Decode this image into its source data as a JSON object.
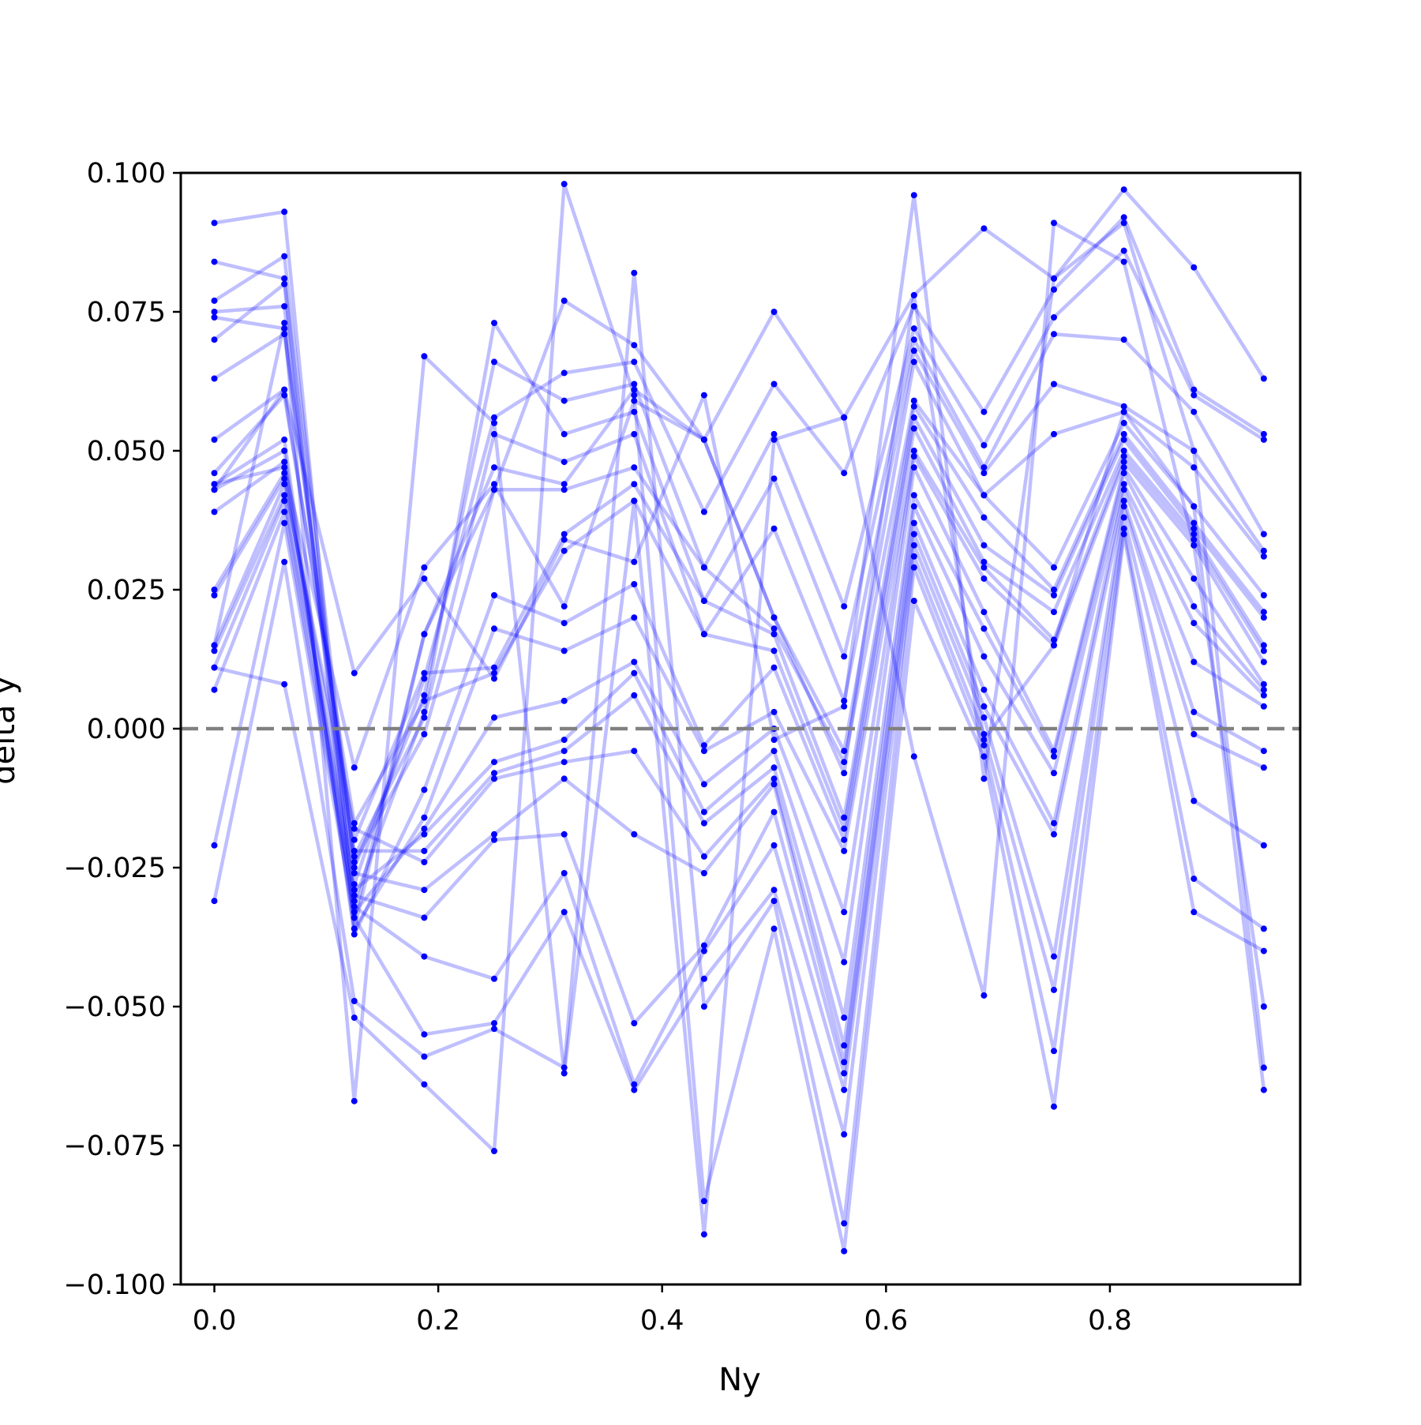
{
  "chart_data": {
    "type": "line",
    "title": "",
    "xlabel": "Ny",
    "ylabel": "delta y",
    "xlim": [
      -0.03,
      0.97
    ],
    "ylim": [
      -0.1,
      0.1
    ],
    "grid": false,
    "x_ticks": [
      0.0,
      0.2,
      0.4,
      0.6,
      0.8
    ],
    "x_tick_labels": [
      "0.0",
      "0.2",
      "0.4",
      "0.6",
      "0.8"
    ],
    "y_ticks": [
      0.1,
      0.075,
      0.05,
      0.025,
      0.0,
      -0.025,
      -0.05,
      -0.075,
      -0.1
    ],
    "y_tick_labels": [
      "0.100",
      "0.075",
      "0.050",
      "0.025",
      "0.000",
      "−0.025",
      "−0.050",
      "−0.075",
      "−0.100"
    ],
    "reference_line": {
      "y": 0.0,
      "style": "dashed",
      "color": "#808080"
    },
    "series_color": "#0000ff",
    "x": [
      0.0,
      0.0625,
      0.125,
      0.1875,
      0.25,
      0.3125,
      0.375,
      0.4375,
      0.5,
      0.5625,
      0.625,
      0.6875,
      0.75,
      0.8125,
      0.875,
      0.9375
    ],
    "series": [
      {
        "values": [
          0.091,
          0.093,
          -0.034,
          0.017,
          0.043,
          0.077,
          0.069,
          0.052,
          0.075,
          0.056,
          0.078,
          0.09,
          0.081,
          0.097,
          0.083,
          0.063
        ]
      },
      {
        "values": [
          0.084,
          0.081,
          -0.028,
          0.009,
          0.056,
          0.064,
          0.066,
          0.039,
          0.062,
          0.046,
          0.076,
          0.057,
          0.079,
          0.092,
          0.061,
          0.053
        ]
      },
      {
        "values": [
          0.077,
          0.085,
          -0.025,
          0.006,
          0.066,
          0.059,
          0.062,
          0.029,
          0.053,
          0.022,
          0.072,
          0.051,
          0.074,
          0.086,
          0.06,
          0.052
        ]
      },
      {
        "values": [
          0.075,
          0.076,
          -0.031,
          0.003,
          0.073,
          0.053,
          0.057,
          0.023,
          0.045,
          0.013,
          0.07,
          0.047,
          0.071,
          0.07,
          0.057,
          0.035
        ]
      },
      {
        "values": [
          0.074,
          0.072,
          -0.023,
          0.002,
          0.053,
          0.048,
          0.053,
          0.017,
          0.036,
          0.005,
          0.068,
          0.046,
          0.062,
          0.058,
          0.05,
          0.032
        ]
      },
      {
        "values": [
          0.07,
          0.08,
          -0.036,
          0.017,
          0.047,
          0.044,
          0.061,
          0.052,
          0.02,
          -0.004,
          0.066,
          0.042,
          0.053,
          0.057,
          0.047,
          0.031
        ]
      },
      {
        "values": [
          0.063,
          0.071,
          -0.024,
          -0.001,
          0.043,
          0.043,
          0.047,
          0.029,
          0.018,
          -0.006,
          0.059,
          0.042,
          0.029,
          0.055,
          0.04,
          0.024
        ]
      },
      {
        "values": [
          0.052,
          0.061,
          -0.02,
          0.01,
          0.011,
          0.035,
          0.044,
          0.023,
          0.017,
          -0.016,
          0.058,
          0.038,
          0.025,
          0.053,
          0.037,
          0.021
        ]
      },
      {
        "values": [
          0.046,
          0.06,
          -0.017,
          0.005,
          0.01,
          0.032,
          0.041,
          0.017,
          0.014,
          -0.018,
          0.056,
          0.033,
          0.024,
          0.052,
          0.036,
          0.02
        ]
      },
      {
        "values": [
          0.044,
          0.052,
          -0.037,
          -0.011,
          0.024,
          0.019,
          0.026,
          -0.003,
          0.011,
          -0.02,
          0.054,
          0.03,
          0.021,
          0.05,
          0.035,
          0.015
        ]
      },
      {
        "values": [
          0.043,
          0.05,
          -0.036,
          -0.016,
          0.018,
          0.014,
          0.02,
          -0.004,
          0.003,
          -0.022,
          0.05,
          0.029,
          0.016,
          0.049,
          0.034,
          0.014
        ]
      },
      {
        "values": [
          0.039,
          0.048,
          -0.033,
          -0.018,
          0.002,
          0.005,
          0.012,
          -0.01,
          0.0,
          -0.033,
          0.049,
          0.027,
          0.015,
          0.048,
          0.033,
          0.012
        ]
      },
      {
        "values": [
          0.025,
          0.046,
          -0.029,
          -0.019,
          -0.006,
          -0.002,
          0.01,
          -0.015,
          -0.004,
          -0.042,
          0.047,
          0.021,
          -0.004,
          0.047,
          0.027,
          0.008
        ]
      },
      {
        "values": [
          0.024,
          0.045,
          -0.022,
          -0.022,
          -0.008,
          -0.004,
          0.006,
          -0.017,
          -0.007,
          -0.052,
          0.042,
          0.018,
          -0.005,
          0.046,
          0.022,
          0.007
        ]
      },
      {
        "values": [
          0.015,
          0.044,
          -0.018,
          -0.024,
          -0.009,
          -0.006,
          -0.004,
          -0.023,
          -0.009,
          -0.057,
          0.04,
          0.013,
          -0.008,
          0.044,
          0.019,
          0.006
        ]
      },
      {
        "values": [
          0.014,
          0.042,
          -0.026,
          -0.029,
          -0.019,
          -0.009,
          -0.019,
          -0.026,
          -0.01,
          -0.06,
          0.037,
          0.007,
          -0.017,
          0.043,
          0.012,
          0.004
        ]
      },
      {
        "values": [
          0.011,
          0.041,
          -0.03,
          -0.034,
          -0.02,
          -0.019,
          -0.053,
          -0.039,
          -0.015,
          -0.062,
          0.035,
          0.004,
          -0.019,
          0.041,
          0.003,
          -0.004
        ]
      },
      {
        "values": [
          0.007,
          0.039,
          -0.032,
          -0.041,
          -0.045,
          -0.026,
          -0.064,
          -0.04,
          -0.021,
          -0.065,
          0.033,
          0.002,
          -0.041,
          0.04,
          -0.001,
          -0.007
        ]
      },
      {
        "values": [
          -0.021,
          0.037,
          -0.034,
          -0.055,
          -0.053,
          -0.033,
          -0.065,
          -0.045,
          -0.029,
          -0.073,
          0.031,
          -0.001,
          -0.047,
          0.038,
          -0.013,
          -0.021
        ]
      },
      {
        "values": [
          -0.031,
          0.03,
          -0.049,
          -0.059,
          -0.054,
          -0.061,
          0.082,
          -0.05,
          -0.031,
          -0.089,
          0.029,
          -0.003,
          -0.058,
          0.036,
          -0.027,
          -0.036
        ]
      },
      {
        "values": [
          0.011,
          0.008,
          -0.052,
          -0.064,
          -0.076,
          0.098,
          0.06,
          -0.085,
          -0.036,
          -0.094,
          0.023,
          -0.005,
          -0.068,
          0.035,
          -0.033,
          -0.04
        ]
      },
      {
        "values": [
          0.015,
          0.073,
          -0.067,
          0.067,
          0.055,
          -0.062,
          0.041,
          -0.091,
          0.052,
          0.056,
          -0.005,
          -0.048,
          0.091,
          0.084,
          0.033,
          -0.05
        ]
      },
      {
        "values": [
          0.043,
          0.061,
          0.01,
          0.027,
          0.009,
          0.034,
          0.03,
          0.06,
          -0.002,
          0.004,
          0.096,
          -0.009,
          0.081,
          0.091,
          0.05,
          -0.061
        ]
      },
      {
        "values": [
          0.044,
          0.047,
          -0.007,
          0.029,
          0.044,
          0.022,
          0.059,
          0.052,
          0.02,
          -0.008,
          0.078,
          -0.002,
          0.015,
          0.057,
          0.04,
          -0.065
        ]
      }
    ]
  }
}
